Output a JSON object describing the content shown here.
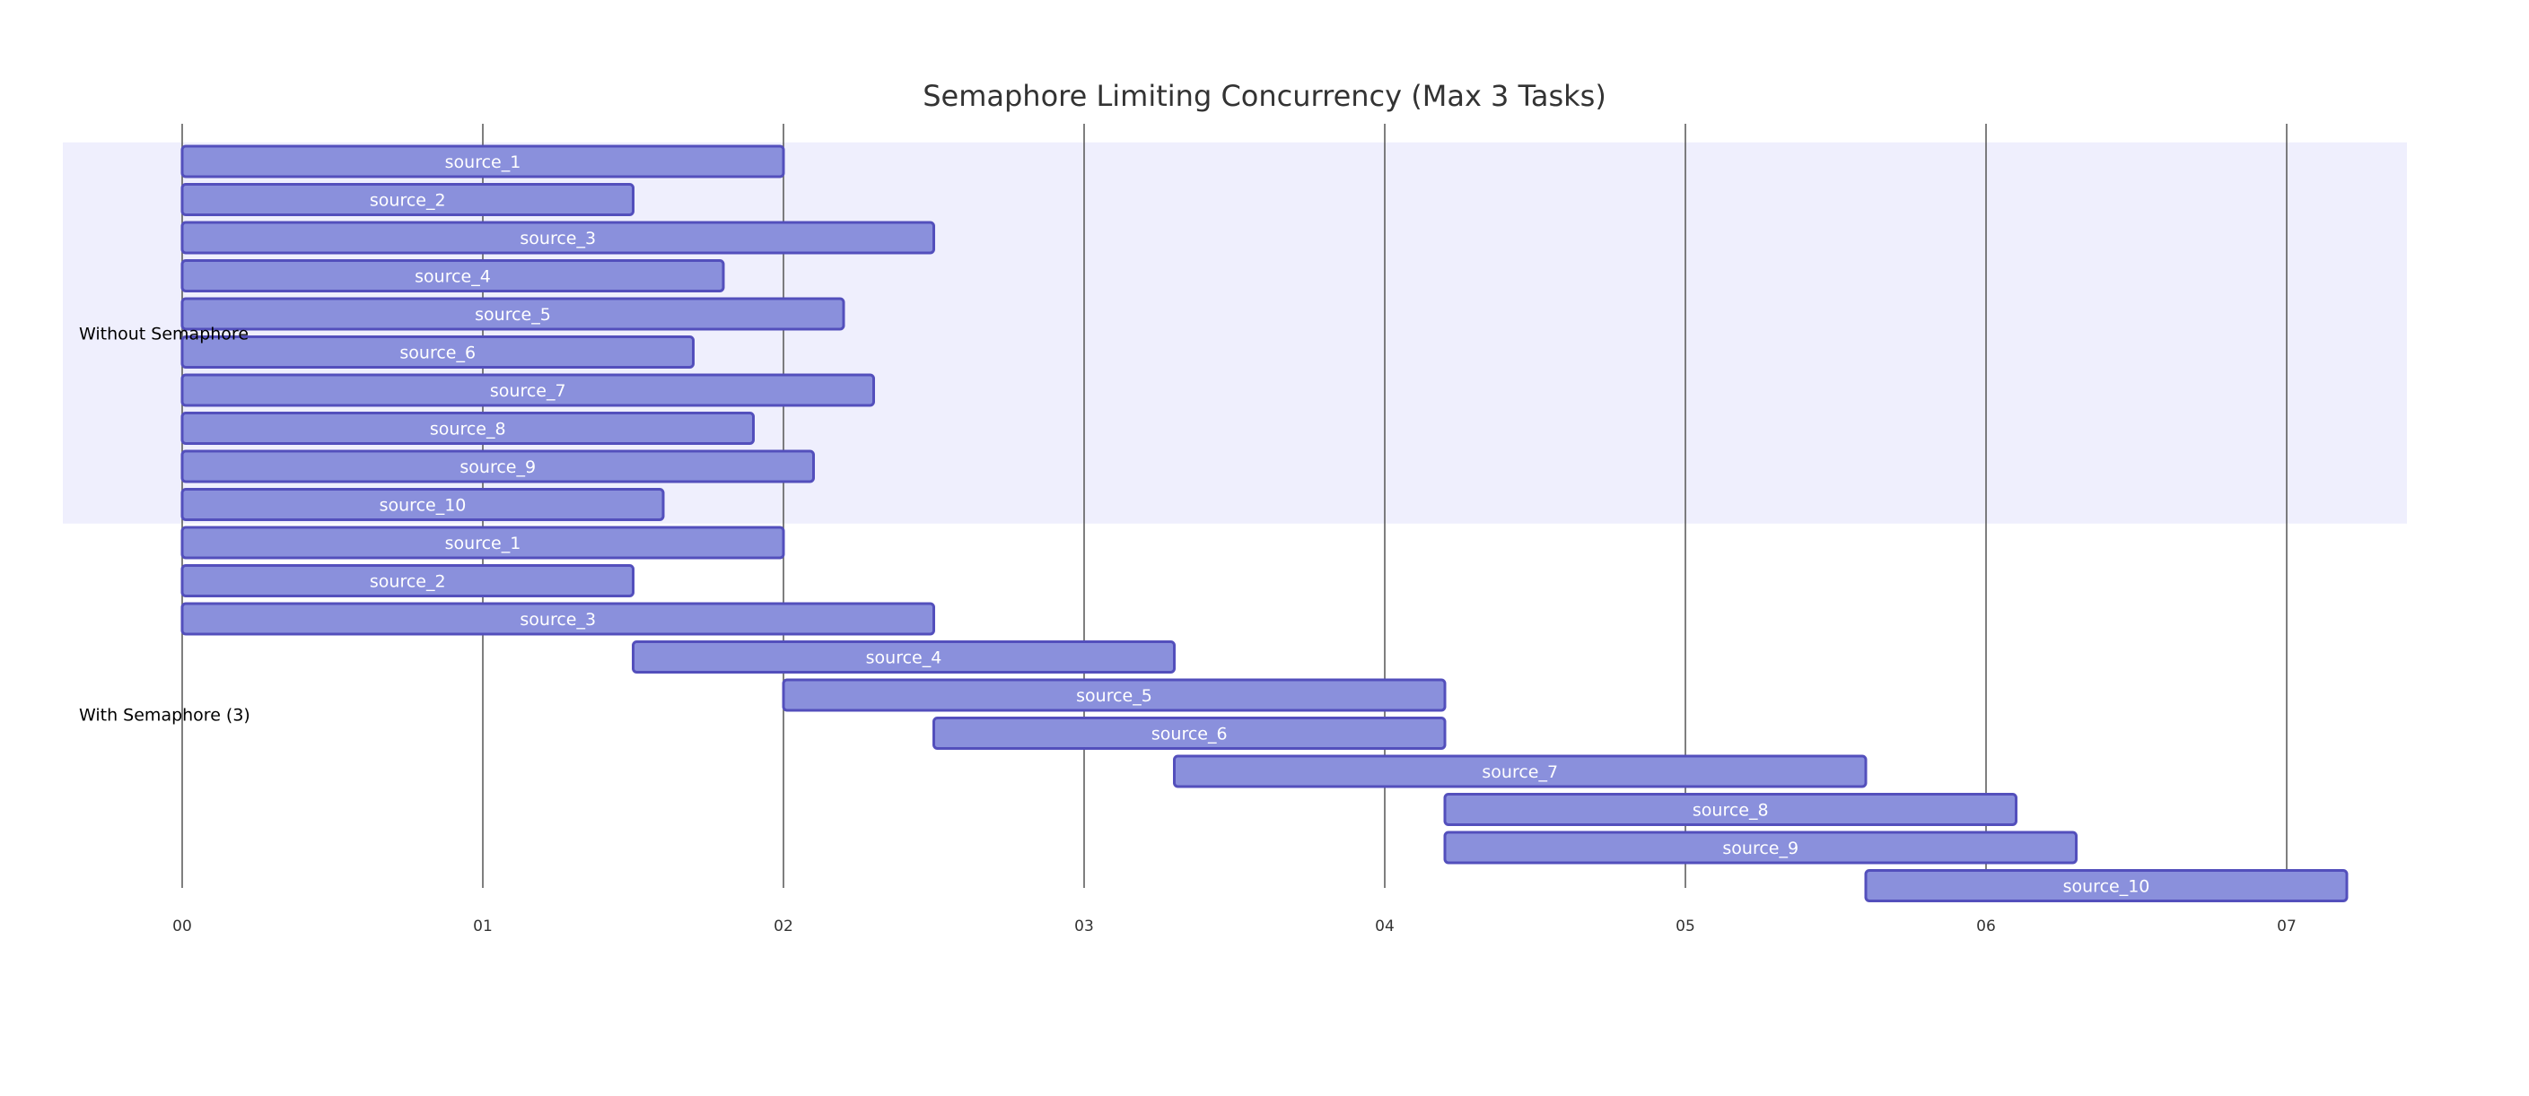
{
  "chart_data": {
    "type": "gantt",
    "title": "Semaphore Limiting Concurrency (Max 3 Tasks)",
    "x_ticks": [
      "00",
      "01",
      "02",
      "03",
      "04",
      "05",
      "06",
      "07"
    ],
    "xlim": [
      0,
      7.55
    ],
    "colors": {
      "bar_fill": "#8a90dc",
      "bar_stroke": "#534fbc",
      "band_fill": "#efeffd",
      "grid": "#555555"
    },
    "sections": [
      {
        "name": "Without Semaphore",
        "tasks": [
          {
            "name": "source_1",
            "start": 0,
            "end": 2.0
          },
          {
            "name": "source_2",
            "start": 0,
            "end": 1.5
          },
          {
            "name": "source_3",
            "start": 0,
            "end": 2.5
          },
          {
            "name": "source_4",
            "start": 0,
            "end": 1.8
          },
          {
            "name": "source_5",
            "start": 0,
            "end": 2.2
          },
          {
            "name": "source_6",
            "start": 0,
            "end": 1.7
          },
          {
            "name": "source_7",
            "start": 0,
            "end": 2.3
          },
          {
            "name": "source_8",
            "start": 0,
            "end": 1.9
          },
          {
            "name": "source_9",
            "start": 0,
            "end": 2.1
          },
          {
            "name": "source_10",
            "start": 0,
            "end": 1.6
          }
        ]
      },
      {
        "name": "With Semaphore (3)",
        "tasks": [
          {
            "name": "source_1",
            "start": 0,
            "end": 2.0
          },
          {
            "name": "source_2",
            "start": 0,
            "end": 1.5
          },
          {
            "name": "source_3",
            "start": 0,
            "end": 2.5
          },
          {
            "name": "source_4",
            "start": 1.5,
            "end": 3.3
          },
          {
            "name": "source_5",
            "start": 2.0,
            "end": 4.2
          },
          {
            "name": "source_6",
            "start": 2.5,
            "end": 4.2
          },
          {
            "name": "source_7",
            "start": 3.3,
            "end": 5.6
          },
          {
            "name": "source_8",
            "start": 4.2,
            "end": 6.1
          },
          {
            "name": "source_9",
            "start": 4.2,
            "end": 6.3
          },
          {
            "name": "source_10",
            "start": 5.6,
            "end": 7.2
          }
        ]
      }
    ]
  }
}
